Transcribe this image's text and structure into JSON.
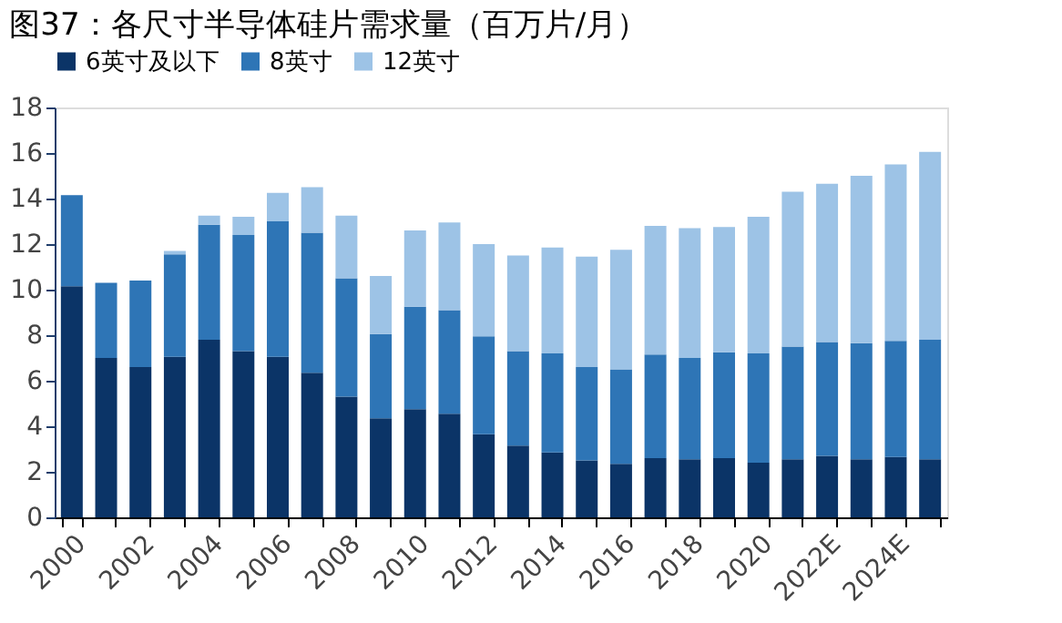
{
  "chart_data": {
    "type": "bar",
    "stacked": true,
    "title": "图37：各尺寸半导体硅片需求量（百万片/月）",
    "categories": [
      "2000",
      null,
      "2002",
      null,
      "2004",
      null,
      "2006",
      null,
      "2008",
      null,
      "2010",
      null,
      "2012",
      null,
      "2014",
      null,
      "2016",
      null,
      "2018",
      null,
      "2020",
      null,
      "2022E",
      null,
      "2024E",
      null
    ],
    "series": [
      {
        "name": "6英寸及以下",
        "color": "#0b3467",
        "values": [
          10.15,
          7.0,
          6.6,
          7.05,
          7.8,
          7.3,
          7.05,
          6.35,
          5.3,
          4.35,
          4.75,
          4.55,
          3.65,
          3.15,
          2.85,
          2.5,
          2.35,
          2.6,
          2.55,
          2.6,
          2.4,
          2.55,
          2.7,
          2.55,
          2.65,
          2.55
        ]
      },
      {
        "name": "8英寸",
        "color": "#2e75b6",
        "values": [
          4.0,
          3.3,
          3.8,
          4.5,
          5.05,
          5.1,
          5.95,
          6.15,
          5.2,
          3.7,
          4.5,
          4.55,
          4.3,
          4.15,
          4.35,
          4.1,
          4.15,
          4.55,
          4.45,
          4.65,
          4.8,
          4.95,
          5.0,
          5.1,
          5.1,
          5.25
        ]
      },
      {
        "name": "12英寸",
        "color": "#9dc3e6",
        "values": [
          0,
          0,
          0,
          0.15,
          0.4,
          0.8,
          1.25,
          2.0,
          2.75,
          2.55,
          3.35,
          3.85,
          4.05,
          4.2,
          4.65,
          4.85,
          5.25,
          5.65,
          5.7,
          5.5,
          6.0,
          6.8,
          6.95,
          7.35,
          7.75,
          8.25
        ]
      }
    ],
    "ylim": [
      0,
      18
    ],
    "yticks": [
      0,
      2,
      4,
      6,
      8,
      10,
      12,
      14,
      16,
      18
    ],
    "grid": false,
    "legend": "top"
  }
}
